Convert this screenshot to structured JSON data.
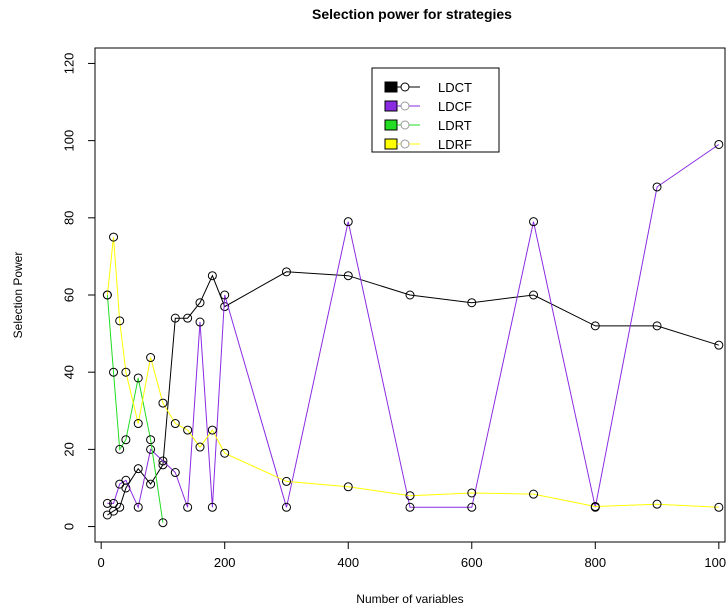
{
  "chart_data": {
    "type": "line",
    "title": "Selection power for strategies",
    "xlabel": "Number of  variables",
    "ylabel": "Selection Power",
    "xlim": [
      -10,
      1010
    ],
    "ylim": [
      -4,
      124
    ],
    "x_ticks": [
      0,
      200,
      400,
      600,
      800,
      1000
    ],
    "y_ticks": [
      0,
      20,
      40,
      60,
      80,
      100,
      120
    ],
    "grid": false,
    "legend_position": "top-center",
    "series": [
      {
        "name": "LDCT",
        "color": "#000000",
        "x": [
          10,
          20,
          30,
          40,
          60,
          80,
          100,
          120,
          140,
          160,
          180,
          200,
          300,
          400,
          500,
          600,
          700,
          800,
          900,
          1000
        ],
        "y": [
          3,
          4,
          5,
          10,
          15,
          11,
          16,
          54,
          54,
          58,
          65,
          57,
          66,
          65,
          60,
          58,
          60,
          52,
          52,
          47
        ]
      },
      {
        "name": "LDCF",
        "color": "#8A2BE2",
        "x": [
          10,
          20,
          30,
          40,
          60,
          80,
          100,
          120,
          140,
          160,
          180,
          200,
          300,
          400,
          500,
          600,
          700,
          800,
          900,
          1000
        ],
        "y": [
          6,
          6,
          11,
          12,
          5,
          20,
          17,
          14,
          5,
          53,
          5,
          60,
          5,
          79,
          5,
          5,
          79,
          5,
          88,
          99
        ]
      },
      {
        "name": "LDRT",
        "color": "#22DD22",
        "x": [
          10,
          20,
          30,
          40,
          60,
          80,
          100
        ],
        "y": [
          60,
          40,
          20,
          22.5,
          38.5,
          22.5,
          1
        ]
      },
      {
        "name": "LDRF",
        "color": "#FFFF00",
        "x": [
          10,
          20,
          30,
          40,
          60,
          80,
          100,
          120,
          140,
          160,
          180,
          200,
          300,
          400,
          500,
          600,
          700,
          800,
          900,
          1000
        ],
        "y": [
          60,
          75,
          53.3,
          40,
          26.7,
          43.8,
          32,
          26.7,
          25,
          20.6,
          25,
          19,
          11.7,
          10.3,
          8,
          8.7,
          8.4,
          5.2,
          5.8,
          5
        ]
      }
    ]
  }
}
